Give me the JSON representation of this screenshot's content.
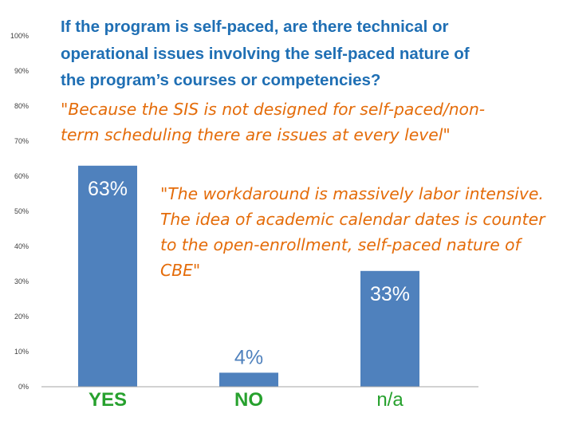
{
  "title_lines": [
    "If the program is self-paced, are there technical or",
    "operational issues involving the self-paced nature of",
    "the program’s courses or competencies?"
  ],
  "quotes": [
    {
      "lines": [
        "\"Because the SIS is not designed for self-paced/non-",
        "term scheduling there are issues at every level\""
      ]
    },
    {
      "lines": [
        "\"The workdaround is massively labor intensive.",
        "The idea of academic calendar dates is counter",
        "to the open-enrollment, self-paced nature of",
        "CBE\""
      ]
    }
  ],
  "colors": {
    "bar": "#4f81bd",
    "title": "#1f6fb4",
    "quote": "#e46c0a",
    "green_label": "#27a12e",
    "axis_text": "#404040"
  },
  "chart_data": {
    "type": "bar",
    "categories": [
      "YES",
      "NO",
      "n/a"
    ],
    "values": [
      63,
      4,
      33
    ],
    "data_labels": [
      "63%",
      "4%",
      "33%"
    ],
    "ylim": [
      0,
      100
    ],
    "yticks": [
      0,
      10,
      20,
      30,
      40,
      50,
      60,
      70,
      80,
      90,
      100
    ],
    "ytick_labels": [
      "0%",
      "10%",
      "20%",
      "30%",
      "40%",
      "50%",
      "60%",
      "70%",
      "80%",
      "90%",
      "100%"
    ],
    "category_label_styles": [
      "bold-green",
      "bold-green",
      "plain-green"
    ],
    "data_label_positions": [
      "inside",
      "above",
      "inside"
    ],
    "grid": false,
    "legend": "none"
  }
}
